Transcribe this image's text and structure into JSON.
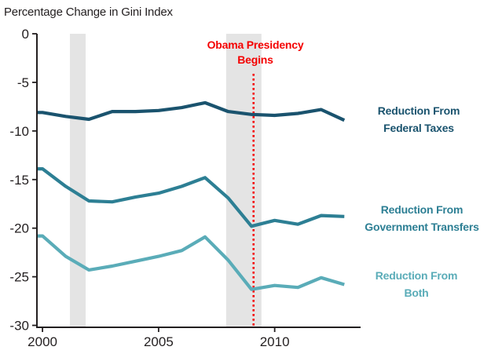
{
  "title": "Percentage Change in Gini Index",
  "annotation": {
    "line1": "Obama Presidency",
    "line2": "Begins",
    "color": "#f40000"
  },
  "series_labels": [
    {
      "line1": "Reduction From",
      "line2": "Federal Taxes",
      "color": "#1a536e"
    },
    {
      "line1": "Reduction From",
      "line2": "Government Transfers",
      "color": "#2d7f94"
    },
    {
      "line1": "Reduction From",
      "line2": "Both",
      "color": "#5aacb8"
    }
  ],
  "chart_data": {
    "type": "line",
    "title": "Percentage Change in Gini Index",
    "xlabel": "",
    "ylabel": "Percentage Change in Gini Index",
    "x": [
      2000,
      2001,
      2002,
      2003,
      2004,
      2005,
      2006,
      2007,
      2008,
      2009,
      2010,
      2011,
      2012,
      2013
    ],
    "series": [
      {
        "name": "Reduction From Federal Taxes",
        "color": "#1a536e",
        "values": [
          -8.1,
          -8.5,
          -8.8,
          -8.0,
          -8.0,
          -7.9,
          -7.6,
          -7.1,
          -8.0,
          -8.3,
          -8.4,
          -8.2,
          -7.8,
          -8.9
        ]
      },
      {
        "name": "Reduction From Government Transfers",
        "color": "#2d7f94",
        "values": [
          -13.9,
          -15.7,
          -17.2,
          -17.3,
          -16.8,
          -16.4,
          -15.7,
          -14.8,
          -16.9,
          -19.8,
          -19.2,
          -19.6,
          -18.7,
          -18.8
        ]
      },
      {
        "name": "Reduction From Both",
        "color": "#5aacb8",
        "values": [
          -20.8,
          -22.9,
          -24.3,
          -23.9,
          -23.4,
          -22.9,
          -22.3,
          -20.9,
          -23.3,
          -26.3,
          -25.9,
          -26.1,
          -25.1,
          -25.8
        ]
      }
    ],
    "xlim": [
      1999.76,
      2013.7
    ],
    "ylim": [
      -30.2,
      0
    ],
    "y_ticks": [
      0,
      -5,
      -10,
      -15,
      -20,
      -25,
      -30
    ],
    "x_ticks": [
      2000,
      2005,
      2010
    ],
    "grid": false,
    "legend_position": "right-inline",
    "axis_color": "#231f20",
    "band_color": "#e4e4e4",
    "annotations": {
      "vline": {
        "x": 2009.09,
        "label": "Obama Presidency Begins",
        "color": "#f40000",
        "style": "dotted"
      },
      "recession_bands": [
        {
          "x0": 2001.18,
          "x1": 2001.86
        },
        {
          "x0": 2007.91,
          "x1": 2009.43
        }
      ]
    }
  }
}
